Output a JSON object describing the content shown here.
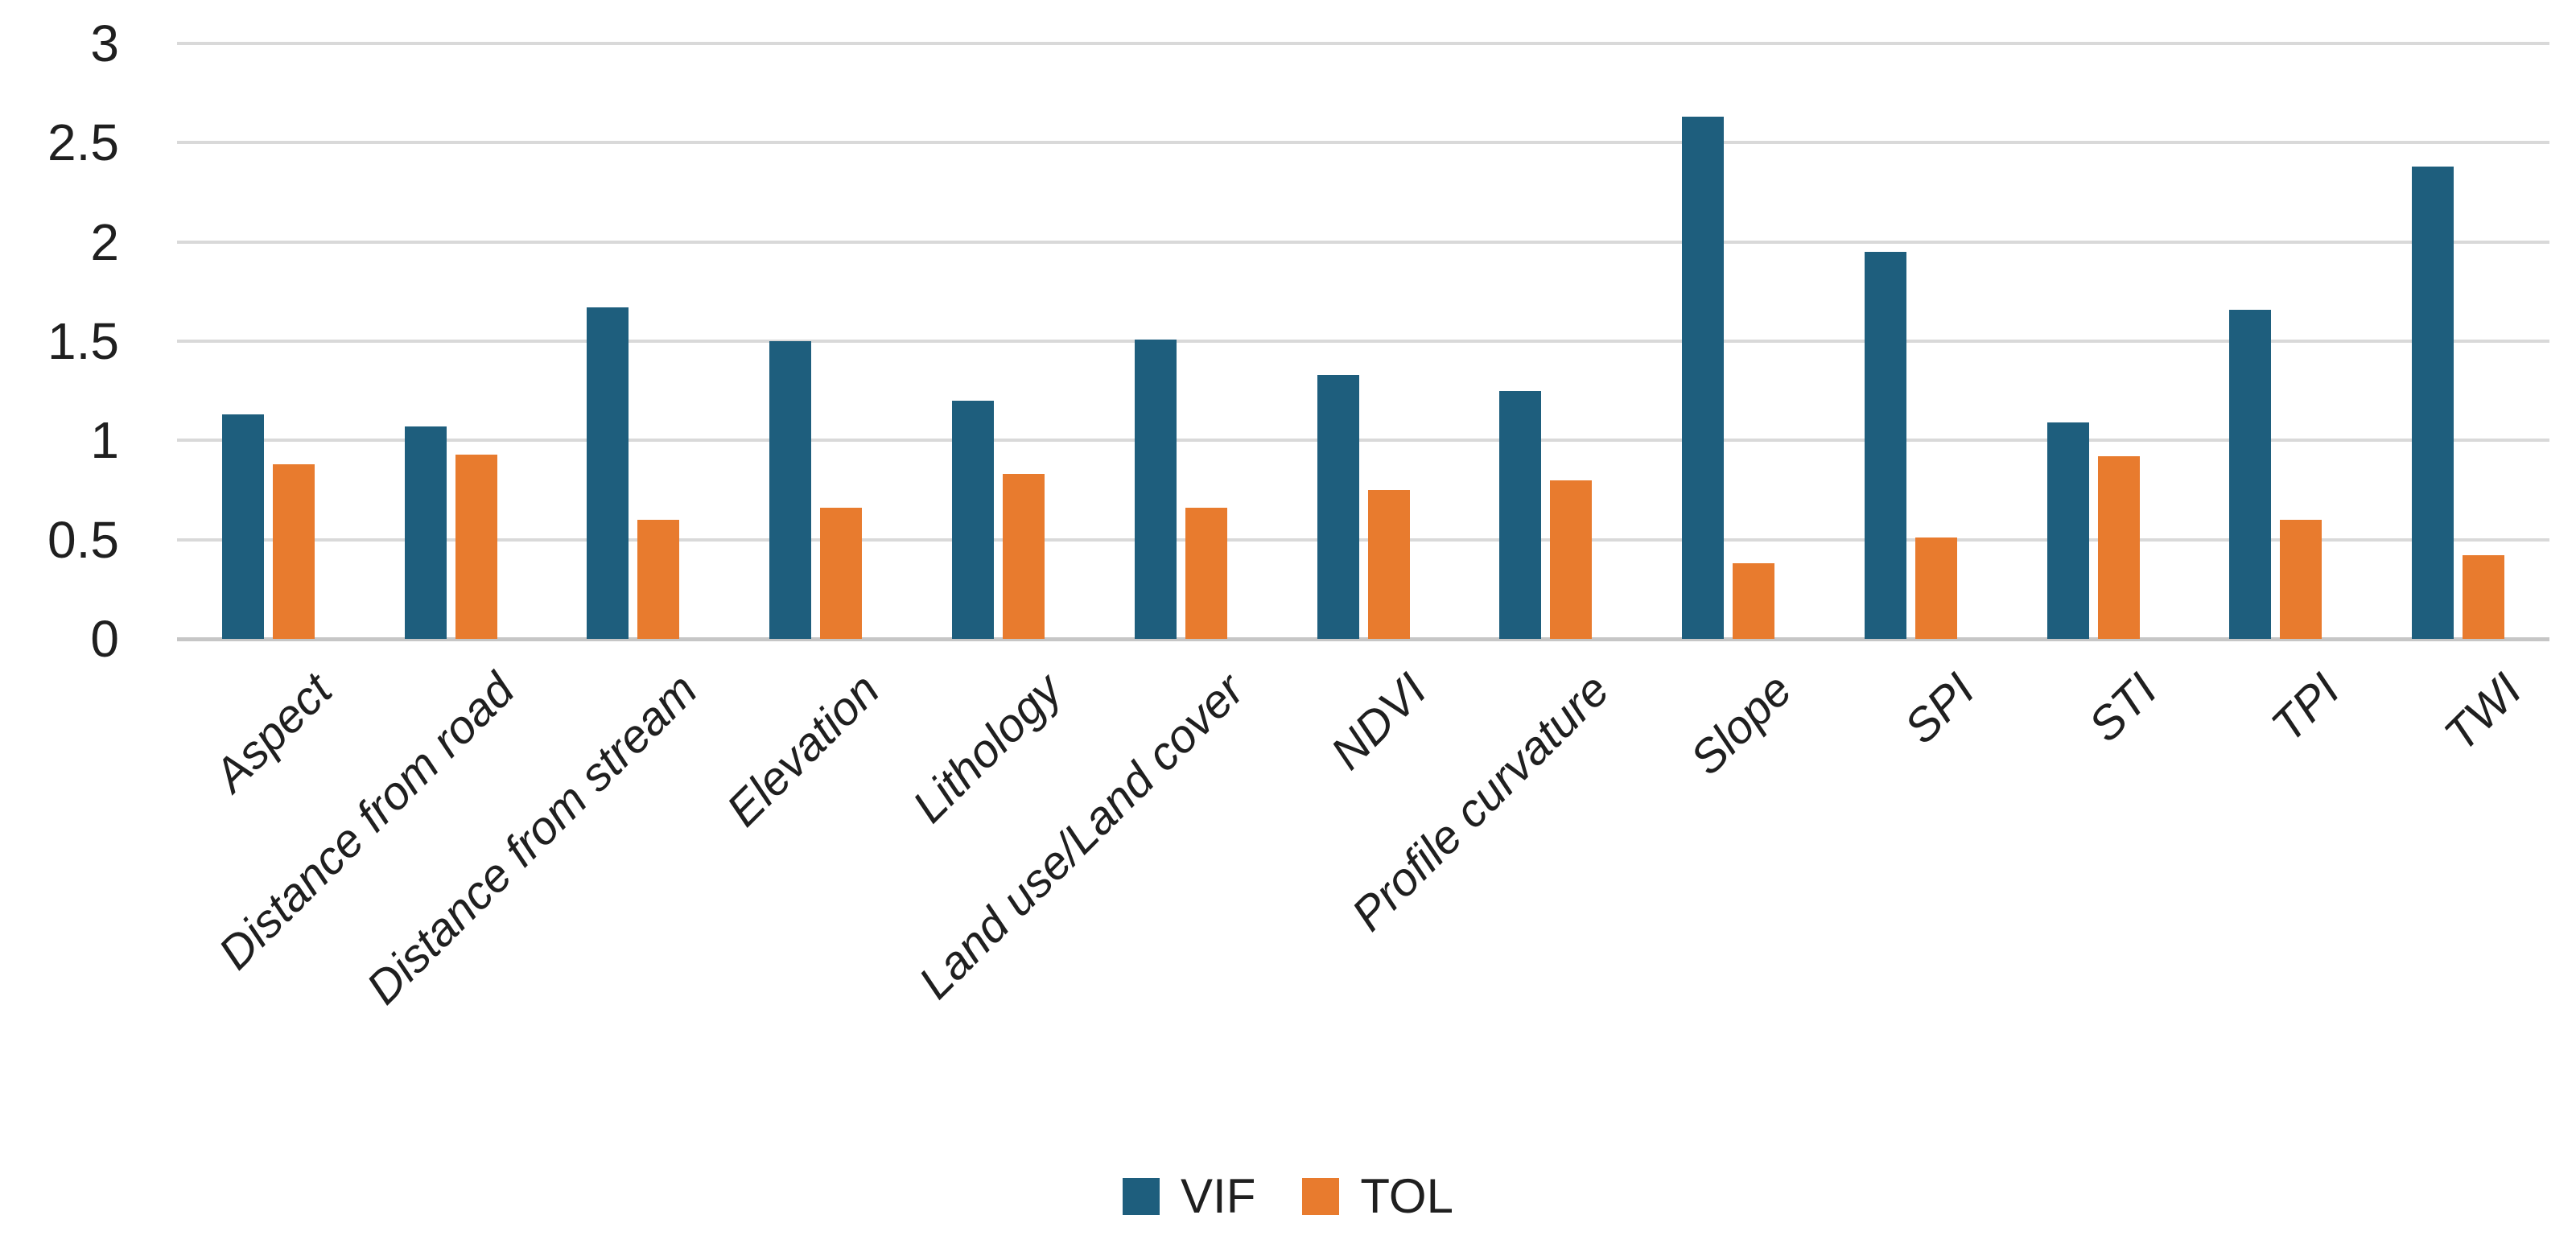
{
  "chart_data": {
    "type": "bar",
    "title": "",
    "xlabel": "",
    "ylabel": "",
    "categories": [
      "Aspect",
      "Distance from road",
      "Distance from stream",
      "Elevation",
      "Lithology",
      "Land use/Land cover",
      "NDVI",
      "Profile curvature",
      "Slope",
      "SPI",
      "STI",
      "TPI",
      "TWI"
    ],
    "series": [
      {
        "name": "VIF",
        "color": "#1E5E7D",
        "values": [
          1.13,
          1.07,
          1.67,
          1.5,
          1.2,
          1.51,
          1.33,
          1.25,
          2.63,
          1.95,
          1.09,
          1.66,
          2.38
        ]
      },
      {
        "name": "TOL",
        "color": "#E87B2E",
        "values": [
          0.88,
          0.93,
          0.6,
          0.66,
          0.83,
          0.66,
          0.75,
          0.8,
          0.38,
          0.51,
          0.92,
          0.6,
          0.42
        ]
      }
    ],
    "ylim": [
      0,
      3
    ],
    "yticks": [
      0,
      0.5,
      1,
      1.5,
      2,
      2.5,
      3
    ],
    "grid": true,
    "legend_position": "bottom",
    "legend_labels": [
      "VIF",
      "TOL"
    ]
  },
  "colors": {
    "background": "#FFFFFF",
    "gridline": "#D9D9D9",
    "axis_line": "#C6C6C6",
    "text": "#1F1F1F"
  }
}
